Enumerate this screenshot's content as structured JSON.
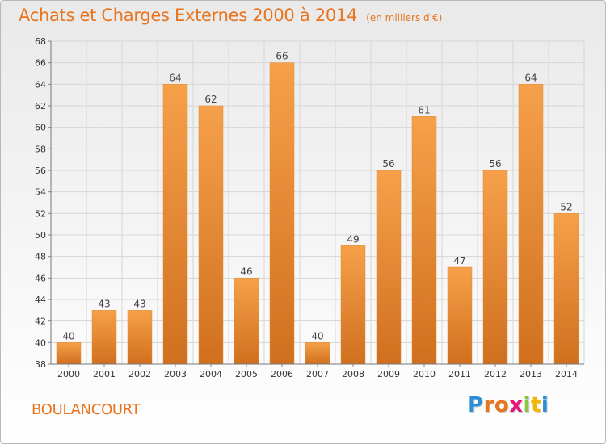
{
  "chart_data": {
    "type": "bar",
    "title": "Achats et Charges Externes 2000 à 2014",
    "subtitle": "(en milliers d'€)",
    "categories": [
      "2000",
      "2001",
      "2002",
      "2003",
      "2004",
      "2005",
      "2006",
      "2007",
      "2008",
      "2009",
      "2010",
      "2011",
      "2012",
      "2013",
      "2014"
    ],
    "values": [
      40,
      43,
      43,
      64,
      62,
      46,
      66,
      40,
      49,
      56,
      61,
      47,
      56,
      64,
      52
    ],
    "xlabel": "",
    "ylabel": "",
    "ylim": [
      38,
      68
    ],
    "yticks": [
      38,
      40,
      42,
      44,
      46,
      48,
      50,
      52,
      54,
      56,
      58,
      60,
      62,
      64,
      66,
      68
    ],
    "grid": true,
    "legend": "none"
  },
  "footer": {
    "commune": "BOULANCOURT",
    "logo_letters": [
      "P",
      "r",
      "o",
      "x",
      "i",
      "t",
      "i"
    ]
  },
  "colors": {
    "accent": "#e8741e",
    "bar_top": "#f6a04a",
    "bar_bottom": "#d0701e",
    "grid": "#d6d6d6",
    "logo": [
      "#2a8fd6",
      "#e8741e",
      "#e8741e",
      "#e2167a",
      "#8bc53f",
      "#f2b705",
      "#2a8fd6"
    ]
  }
}
